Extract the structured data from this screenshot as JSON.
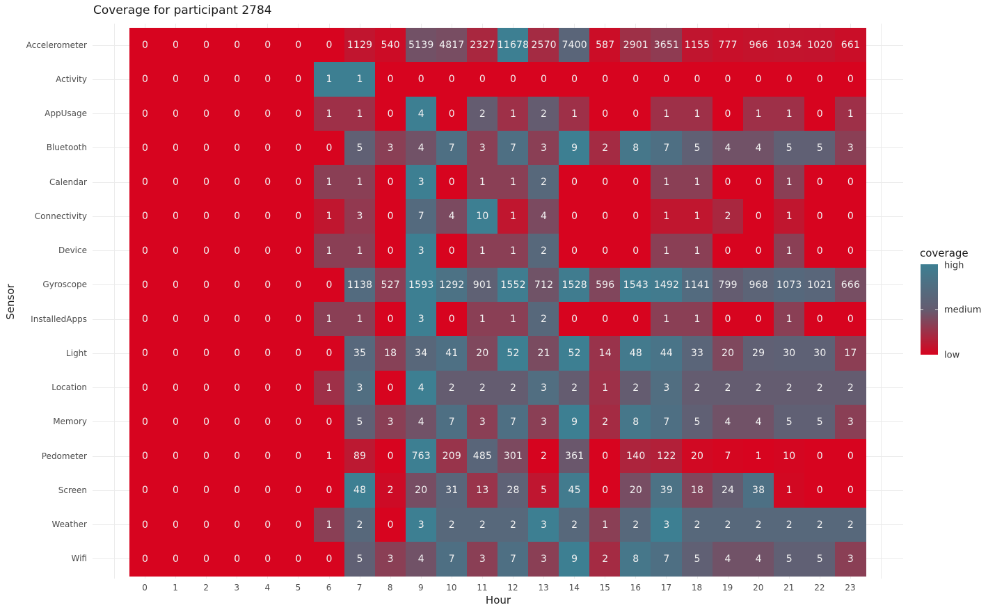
{
  "chart_data": {
    "type": "heatmap",
    "title": "Coverage for participant 2784",
    "xlabel": "Hour",
    "ylabel": "Sensor",
    "x": [
      "0",
      "1",
      "2",
      "3",
      "4",
      "5",
      "6",
      "7",
      "8",
      "9",
      "10",
      "11",
      "12",
      "13",
      "14",
      "15",
      "16",
      "17",
      "18",
      "19",
      "20",
      "21",
      "22",
      "23"
    ],
    "y": [
      "Accelerometer",
      "Activity",
      "AppUsage",
      "Bluetooth",
      "Calendar",
      "Connectivity",
      "Device",
      "Gyroscope",
      "InstalledApps",
      "Light",
      "Location",
      "Memory",
      "Pedometer",
      "Screen",
      "Weather",
      "Wifi"
    ],
    "values": [
      [
        0,
        0,
        0,
        0,
        0,
        0,
        0,
        1129,
        540,
        5139,
        4817,
        2327,
        11678,
        2570,
        7400,
        587,
        2901,
        3651,
        1155,
        777,
        966,
        1034,
        1020,
        661
      ],
      [
        0,
        0,
        0,
        0,
        0,
        0,
        1,
        1,
        0,
        0,
        0,
        0,
        0,
        0,
        0,
        0,
        0,
        0,
        0,
        0,
        0,
        0,
        0,
        0
      ],
      [
        0,
        0,
        0,
        0,
        0,
        0,
        1,
        1,
        0,
        4,
        0,
        2,
        1,
        2,
        1,
        0,
        0,
        1,
        1,
        0,
        1,
        1,
        0,
        1
      ],
      [
        0,
        0,
        0,
        0,
        0,
        0,
        0,
        5,
        3,
        4,
        7,
        3,
        7,
        3,
        9,
        2,
        8,
        7,
        5,
        4,
        4,
        5,
        5,
        3
      ],
      [
        0,
        0,
        0,
        0,
        0,
        0,
        1,
        1,
        0,
        3,
        0,
        1,
        1,
        2,
        0,
        0,
        0,
        1,
        1,
        0,
        0,
        1,
        0,
        0
      ],
      [
        0,
        0,
        0,
        0,
        0,
        0,
        1,
        3,
        0,
        7,
        4,
        10,
        1,
        4,
        0,
        0,
        0,
        1,
        1,
        2,
        0,
        1,
        0,
        0
      ],
      [
        0,
        0,
        0,
        0,
        0,
        0,
        1,
        1,
        0,
        3,
        0,
        1,
        1,
        2,
        0,
        0,
        0,
        1,
        1,
        0,
        0,
        1,
        0,
        0
      ],
      [
        0,
        0,
        0,
        0,
        0,
        0,
        0,
        1138,
        527,
        1593,
        1292,
        901,
        1552,
        712,
        1528,
        596,
        1543,
        1492,
        1141,
        799,
        968,
        1073,
        1021,
        666
      ],
      [
        0,
        0,
        0,
        0,
        0,
        0,
        1,
        1,
        0,
        3,
        0,
        1,
        1,
        2,
        0,
        0,
        0,
        1,
        1,
        0,
        0,
        1,
        0,
        0
      ],
      [
        0,
        0,
        0,
        0,
        0,
        0,
        0,
        35,
        18,
        34,
        41,
        20,
        52,
        21,
        52,
        14,
        48,
        44,
        33,
        20,
        29,
        30,
        30,
        17
      ],
      [
        0,
        0,
        0,
        0,
        0,
        0,
        1,
        3,
        0,
        4,
        2,
        2,
        2,
        3,
        2,
        1,
        2,
        3,
        2,
        2,
        2,
        2,
        2,
        2
      ],
      [
        0,
        0,
        0,
        0,
        0,
        0,
        0,
        5,
        3,
        4,
        7,
        3,
        7,
        3,
        9,
        2,
        8,
        7,
        5,
        4,
        4,
        5,
        5,
        3
      ],
      [
        0,
        0,
        0,
        0,
        0,
        0,
        1,
        89,
        0,
        763,
        209,
        485,
        301,
        2,
        361,
        0,
        140,
        122,
        20,
        7,
        1,
        10,
        0,
        0
      ],
      [
        0,
        0,
        0,
        0,
        0,
        0,
        0,
        48,
        2,
        20,
        31,
        13,
        28,
        5,
        45,
        0,
        20,
        39,
        18,
        24,
        38,
        1,
        0,
        0
      ],
      [
        0,
        0,
        0,
        0,
        0,
        0,
        1,
        2,
        0,
        3,
        2,
        2,
        2,
        3,
        2,
        1,
        2,
        3,
        2,
        2,
        2,
        2,
        2,
        2
      ],
      [
        0,
        0,
        0,
        0,
        0,
        0,
        0,
        5,
        3,
        4,
        7,
        3,
        7,
        3,
        9,
        2,
        8,
        7,
        5,
        4,
        4,
        5,
        5,
        3
      ]
    ],
    "color_scale": {
      "legend_title": "coverage",
      "stops": [
        {
          "label": "high",
          "color": "#3d7f92"
        },
        {
          "label": "medium",
          "color": "#645c70"
        },
        {
          "label": "low",
          "color": "#d7041f"
        }
      ],
      "normalization": "per-row (value / row max)"
    },
    "grid": true,
    "legend_position": "right"
  },
  "labels": {
    "title": "Coverage for participant 2784",
    "xlabel": "Hour",
    "ylabel": "Sensor",
    "legend_title": "coverage",
    "legend_high": "high",
    "legend_medium": "medium",
    "legend_low": "low"
  }
}
